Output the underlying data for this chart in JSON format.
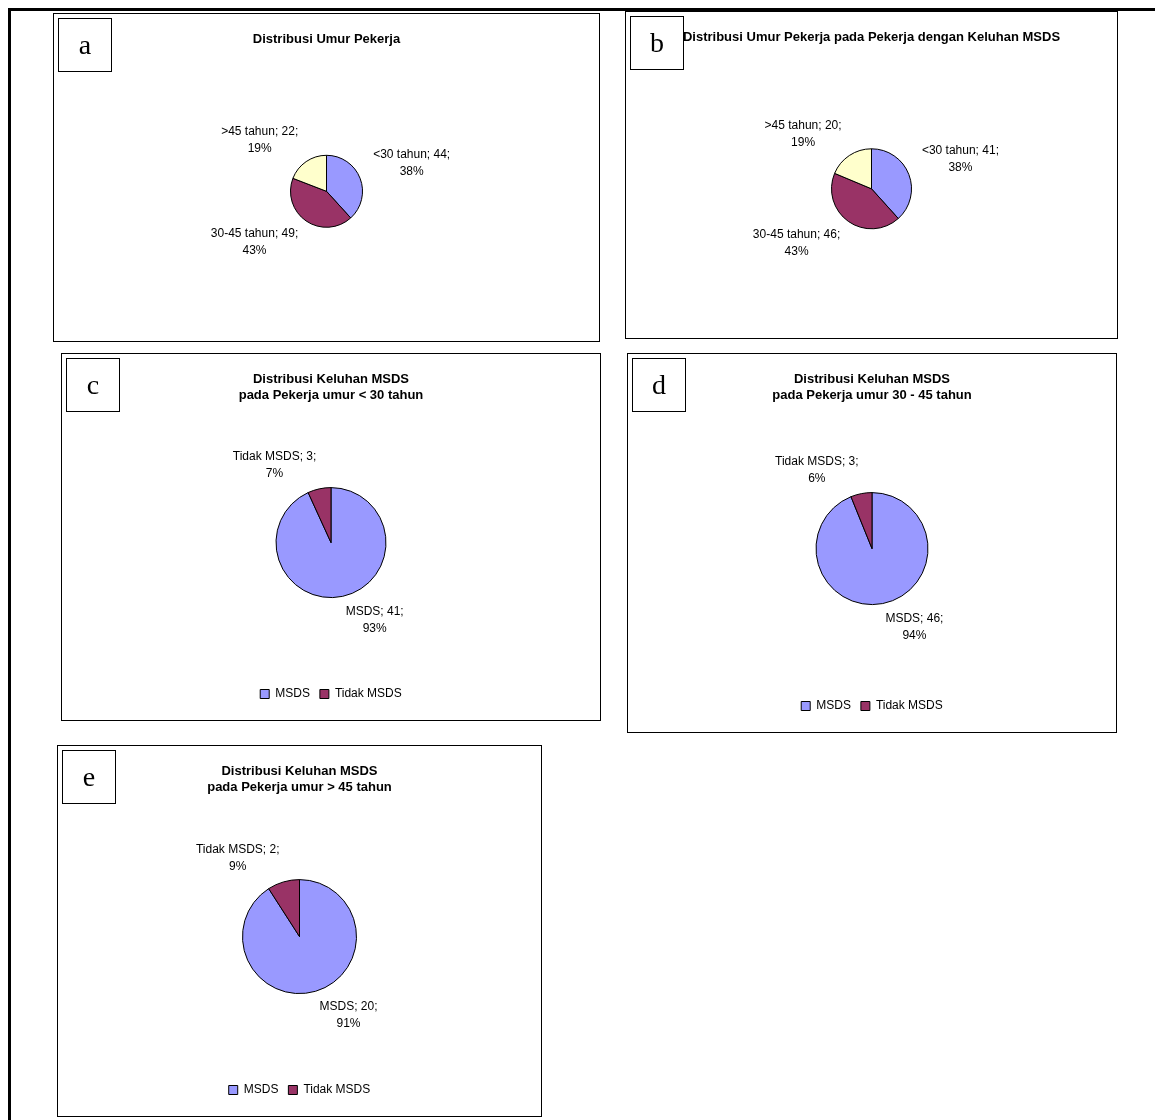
{
  "chart_data": [
    {
      "type": "pie",
      "title": "Distribusi Umur Pekerja",
      "annotations": [
        "a"
      ],
      "categories": [
        "<30 tahun",
        "30-45 tahun",
        ">45 tahun"
      ],
      "values": [
        44,
        49,
        22
      ],
      "colors": [
        "#9999ff",
        "#993366",
        "#ffffcc"
      ],
      "value_labels": [
        "; 44; 38%",
        "; 49; 43%",
        "; 22; 19%"
      ],
      "legend": false
    },
    {
      "type": "pie",
      "title": "Distribusi Umur Pekerja pada Pekerja dengan Keluhan MSDS",
      "annotations": [
        "b"
      ],
      "categories": [
        "<30 tahun",
        "30-45 tahun",
        ">45 tahun"
      ],
      "values": [
        41,
        46,
        20
      ],
      "colors": [
        "#9999ff",
        "#993366",
        "#ffffcc"
      ],
      "value_labels": [
        "; 41; 38%",
        "; 46; 43%",
        "; 20; 19%"
      ],
      "legend": false
    },
    {
      "type": "pie",
      "title": "Distribusi Keluhan MSDS\npada Pekerja umur < 30 tahun",
      "annotations": [
        "c"
      ],
      "categories": [
        "MSDS",
        "Tidak MSDS"
      ],
      "values": [
        41,
        3
      ],
      "colors": [
        "#9999ff",
        "#993366"
      ],
      "value_labels": [
        "; 41; 93%",
        "; 3; 7%"
      ],
      "legend": "bottom"
    },
    {
      "type": "pie",
      "title": "Distribusi Keluhan MSDS\npada Pekerja umur 30 - 45 tahun",
      "annotations": [
        "d"
      ],
      "categories": [
        "MSDS",
        "Tidak MSDS"
      ],
      "values": [
        46,
        3
      ],
      "colors": [
        "#9999ff",
        "#993366"
      ],
      "value_labels": [
        "; 46; 94%",
        "; 3; 6%"
      ],
      "legend": "bottom"
    },
    {
      "type": "pie",
      "title": "Distribusi Keluhan MSDS\npada Pekerja umur > 45 tahun",
      "annotations": [
        "e"
      ],
      "categories": [
        "MSDS",
        "Tidak MSDS"
      ],
      "values": [
        20,
        2
      ],
      "colors": [
        "#9999ff",
        "#993366"
      ],
      "value_labels": [
        "; 20; 91%",
        "; 2; 9%"
      ],
      "legend": "bottom"
    }
  ]
}
